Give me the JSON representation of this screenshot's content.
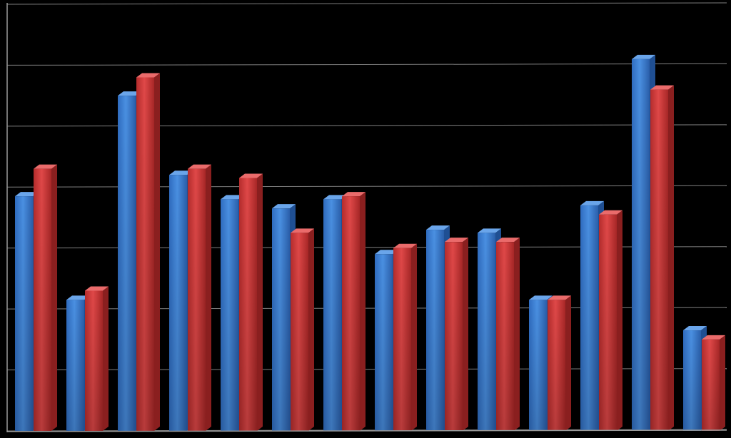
{
  "chart_data": {
    "type": "bar",
    "style": "3d-clustered-column",
    "background": "#000000",
    "grid": true,
    "legend": "none",
    "axis_labels_shown": false,
    "ylim": [
      0,
      7
    ],
    "categories": [
      "",
      "",
      "",
      "",
      "",
      "",
      "",
      "",
      "",
      "",
      "",
      "",
      "",
      ""
    ],
    "series": [
      {
        "color": "#3b7fd4",
        "values": [
          3.85,
          2.15,
          5.5,
          4.2,
          3.8,
          3.65,
          3.8,
          2.9,
          3.3,
          3.25,
          2.15,
          3.7,
          6.1,
          1.65
        ]
      },
      {
        "color": "#d23b3b",
        "values": [
          4.3,
          2.3,
          5.8,
          4.3,
          4.15,
          3.25,
          3.85,
          3.0,
          3.1,
          3.1,
          2.15,
          3.55,
          5.6,
          1.5
        ]
      }
    ]
  }
}
